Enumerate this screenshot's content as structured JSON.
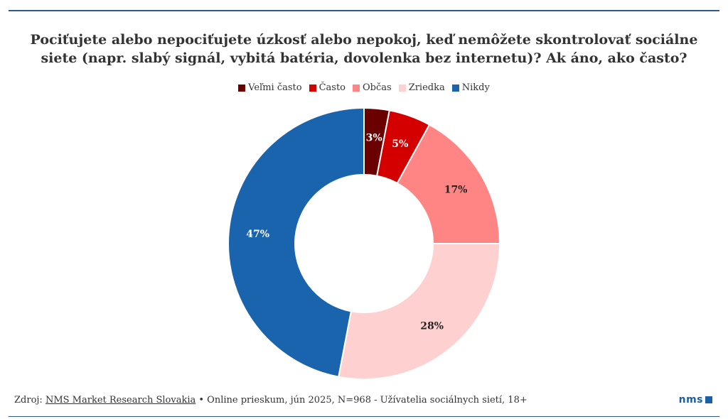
{
  "title": "Pociťujete alebo nepociťujete úzkosť alebo nepokoj, keď nemôžete skontrolovať sociálne siete (napr. slabý signál, vybitá batéria, dovolenka bez internetu)? Ak áno, ako často?",
  "chart_data": {
    "type": "pie",
    "donut": true,
    "legend_position": "top",
    "slices": [
      {
        "name": "Veľmi často",
        "value": 3,
        "label": "3%",
        "color": "#6b0000",
        "label_color": "#ffffff"
      },
      {
        "name": "Často",
        "value": 5,
        "label": "5%",
        "color": "#d40000",
        "label_color": "#ffffff"
      },
      {
        "name": "Občas",
        "value": 17,
        "label": "17%",
        "color": "#ff8585",
        "label_color": "#222222"
      },
      {
        "name": "Zriedka",
        "value": 28,
        "label": "28%",
        "color": "#ffd0d0",
        "label_color": "#222222"
      },
      {
        "name": "Nikdy",
        "value": 47,
        "label": "47%",
        "color": "#1a63ad",
        "label_color": "#ffffff"
      }
    ]
  },
  "footer": {
    "prefix": "Zdroj: ",
    "source_link": "NMS Market Research Slovakia",
    "details": " • Online prieskum, jún 2025, N=968 - Užívatelia sociálnych sietí, 18+"
  },
  "logo": {
    "text": "nms",
    "color": "#1a5fa8"
  }
}
